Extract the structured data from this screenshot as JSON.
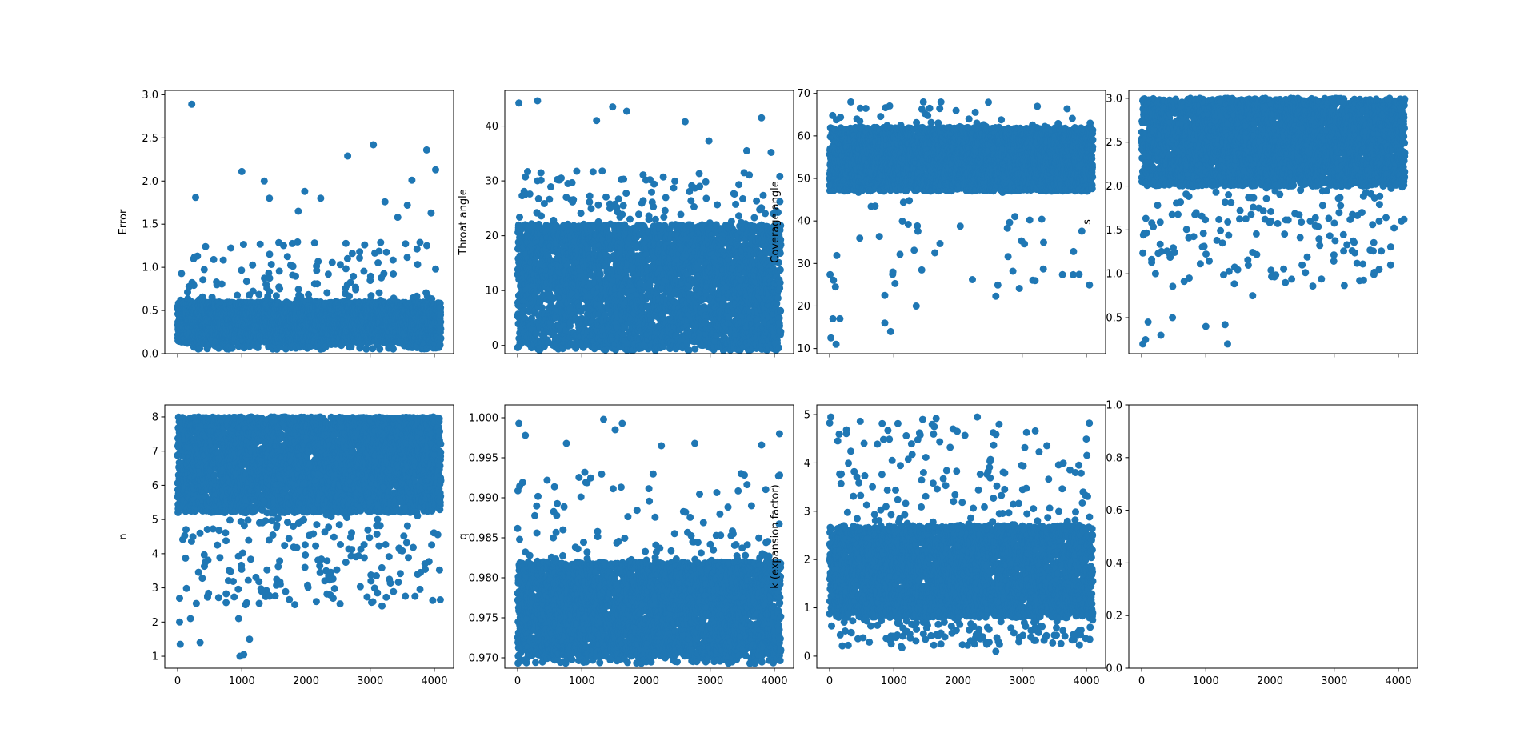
{
  "figure": {
    "marker_color": "#1f77b4",
    "axes_color": "#000000",
    "background": "#ffffff"
  },
  "chart_data": [
    {
      "type": "scatter",
      "ylabel": "Error",
      "xlim": [
        -200,
        4300
      ],
      "ylim": [
        0,
        3.05
      ],
      "xticks": [
        0,
        1000,
        2000,
        3000,
        4000
      ],
      "xtick_labels": [
        "",
        "",
        "",
        "",
        ""
      ],
      "yticks": [
        0,
        0.5,
        1,
        1.5,
        2,
        2.5,
        3
      ],
      "ytick_labels": [
        "0.0",
        "0.5",
        "1.0",
        "1.5",
        "2.0",
        "2.5",
        "3.0"
      ],
      "distribution": {
        "n": 4100,
        "x_range": [
          0,
          4100
        ],
        "dense_band": [
          0.13,
          0.6
        ],
        "spread_max": 1.3,
        "outlier_frac": 0.06
      },
      "outliers": [
        [
          220,
          2.89
        ],
        [
          3050,
          2.42
        ],
        [
          3880,
          2.36
        ],
        [
          2650,
          2.29
        ],
        [
          4020,
          2.13
        ],
        [
          1000,
          2.11
        ],
        [
          1350,
          2.0
        ],
        [
          3650,
          2.01
        ],
        [
          1980,
          1.88
        ],
        [
          280,
          1.81
        ],
        [
          1430,
          1.8
        ],
        [
          2230,
          1.8
        ],
        [
          3230,
          1.76
        ],
        [
          3580,
          1.72
        ],
        [
          3950,
          1.63
        ],
        [
          3430,
          1.58
        ],
        [
          1880,
          1.65
        ]
      ]
    },
    {
      "type": "scatter",
      "ylabel": "Throat angle",
      "xlim": [
        -200,
        4300
      ],
      "ylim": [
        -1.5,
        46.5
      ],
      "xticks": [
        0,
        1000,
        2000,
        3000,
        4000
      ],
      "xtick_labels": [
        "",
        "",
        "",
        "",
        ""
      ],
      "yticks": [
        0,
        10,
        20,
        30,
        40
      ],
      "ytick_labels": [
        "0",
        "10",
        "20",
        "30",
        "40"
      ],
      "distribution": {
        "n": 4100,
        "x_range": [
          0,
          4100
        ],
        "dense_band": [
          0,
          22
        ],
        "spread_max": 32,
        "outlier_frac": 0.05
      },
      "outliers": [
        [
          310,
          44.6
        ],
        [
          20,
          44.2
        ],
        [
          1480,
          43.5
        ],
        [
          1700,
          42.7
        ],
        [
          1230,
          41.0
        ],
        [
          3800,
          41.5
        ],
        [
          2610,
          40.8
        ],
        [
          3570,
          35.5
        ],
        [
          2980,
          37.3
        ],
        [
          3950,
          35.2
        ]
      ]
    },
    {
      "type": "scatter",
      "ylabel": "Coverage angle",
      "xlim": [
        -200,
        4300
      ],
      "ylim": [
        8.8,
        70.7
      ],
      "xticks": [
        0,
        1000,
        2000,
        3000,
        4000
      ],
      "xtick_labels": [
        "",
        "",
        "",
        "",
        ""
      ],
      "yticks": [
        10,
        20,
        30,
        40,
        50,
        60,
        70
      ],
      "ytick_labels": [
        "10",
        "20",
        "30",
        "40",
        "50",
        "60",
        "70"
      ],
      "distribution": {
        "n": 4100,
        "x_range": [
          0,
          4100
        ],
        "dense_band": [
          47,
          62
        ],
        "spread_max": 68,
        "outlier_frac": 0.02
      },
      "outliers": [
        [
          100,
          11.0
        ],
        [
          20,
          12.5
        ],
        [
          50,
          17.0
        ],
        [
          160,
          17.0
        ],
        [
          950,
          14.0
        ],
        [
          860,
          16.0
        ],
        [
          1350,
          20.0
        ],
        [
          2590,
          22.3
        ],
        [
          860,
          22.5
        ],
        [
          3330,
          28.7
        ],
        [
          3800,
          32.8
        ],
        [
          2780,
          31.6
        ],
        [
          1640,
          32.5
        ],
        [
          90,
          24.5
        ],
        [
          1460,
          68.0
        ],
        [
          330,
          68.0
        ]
      ]
    },
    {
      "type": "scatter",
      "ylabel": "s",
      "xlim": [
        -200,
        4300
      ],
      "ylim": [
        0.09,
        3.09
      ],
      "xticks": [
        0,
        1000,
        2000,
        3000,
        4000
      ],
      "xtick_labels": [
        "",
        "",
        "",
        "",
        ""
      ],
      "yticks": [
        0.5,
        1,
        1.5,
        2,
        2.5,
        3
      ],
      "ytick_labels": [
        "0.5",
        "1.0",
        "1.5",
        "2.0",
        "2.5",
        "3.0"
      ],
      "distribution": {
        "n": 4100,
        "x_range": [
          0,
          4100
        ],
        "dense_band": [
          2.0,
          2.97
        ],
        "spread_max": 3.0,
        "outlier_frac": 0.08
      },
      "outliers": [
        [
          1340,
          0.2
        ],
        [
          1300,
          0.42
        ],
        [
          60,
          0.25
        ],
        [
          20,
          0.2
        ],
        [
          100,
          0.45
        ],
        [
          300,
          0.3
        ],
        [
          480,
          0.5
        ],
        [
          1000,
          0.4
        ],
        [
          3700,
          1.05
        ],
        [
          3880,
          1.1
        ],
        [
          4050,
          1.6
        ],
        [
          1730,
          0.75
        ],
        [
          2240,
          0.9
        ],
        [
          2500,
          1.1
        ]
      ]
    },
    {
      "type": "scatter",
      "ylabel": "n",
      "xlim": [
        -200,
        4300
      ],
      "ylim": [
        0.65,
        8.35
      ],
      "xticks": [
        0,
        1000,
        2000,
        3000,
        4000
      ],
      "xtick_labels": [
        "0",
        "1000",
        "2000",
        "3000",
        "4000"
      ],
      "yticks": [
        1,
        2,
        3,
        4,
        5,
        6,
        7,
        8
      ],
      "ytick_labels": [
        "1",
        "2",
        "3",
        "4",
        "5",
        "6",
        "7",
        "8"
      ],
      "distribution": {
        "n": 4100,
        "x_range": [
          0,
          4100
        ],
        "dense_band": [
          5.2,
          7.95
        ],
        "spread_max": 8.0,
        "outlier_frac": 0.08
      },
      "outliers": [
        [
          970,
          1.0
        ],
        [
          1030,
          1.05
        ],
        [
          1120,
          1.5
        ],
        [
          950,
          2.1
        ],
        [
          40,
          1.35
        ],
        [
          30,
          2.0
        ],
        [
          200,
          2.1
        ],
        [
          350,
          1.4
        ],
        [
          3300,
          3.25
        ],
        [
          3470,
          4.1
        ],
        [
          1310,
          2.9
        ],
        [
          1600,
          3.1
        ],
        [
          2220,
          3.45
        ]
      ]
    },
    {
      "type": "scatter",
      "ylabel": "q",
      "xlim": [
        -200,
        4300
      ],
      "ylim": [
        0.9687,
        1.0016
      ],
      "xticks": [
        0,
        1000,
        2000,
        3000,
        4000
      ],
      "xtick_labels": [
        "0",
        "1000",
        "2000",
        "3000",
        "4000"
      ],
      "yticks": [
        0.97,
        0.975,
        0.98,
        0.985,
        0.99,
        0.995,
        1.0
      ],
      "ytick_labels": [
        "0.970",
        "0.975",
        "0.980",
        "0.985",
        "0.990",
        "0.995",
        "1.000"
      ],
      "distribution": {
        "n": 4100,
        "x_range": [
          0,
          4100
        ],
        "dense_band": [
          0.9702,
          0.982
        ],
        "spread_max": 0.9935,
        "outlier_frac": 0.05
      },
      "outliers": [
        [
          1340,
          0.9998
        ],
        [
          20,
          0.9993
        ],
        [
          1630,
          0.9993
        ],
        [
          4080,
          0.998
        ],
        [
          3800,
          0.9966
        ],
        [
          2760,
          0.9968
        ],
        [
          2240,
          0.9965
        ],
        [
          1520,
          0.9985
        ],
        [
          760,
          0.9968
        ],
        [
          120,
          0.9978
        ]
      ]
    },
    {
      "type": "scatter",
      "ylabel": "k (expansion factor)",
      "xlim": [
        -200,
        4300
      ],
      "ylim": [
        -0.25,
        5.2
      ],
      "xticks": [
        0,
        1000,
        2000,
        3000,
        4000
      ],
      "xtick_labels": [
        "0",
        "1000",
        "2000",
        "3000",
        "4000"
      ],
      "yticks": [
        0,
        1,
        2,
        3,
        4,
        5
      ],
      "ytick_labels": [
        "0",
        "1",
        "2",
        "3",
        "4",
        "5"
      ],
      "distribution": {
        "n": 4100,
        "x_range": [
          0,
          4100
        ],
        "dense_band": [
          0.8,
          2.7
        ],
        "spread_max": 4.9,
        "outlier_frac": 0.07
      },
      "outliers": [
        [
          20,
          4.95
        ],
        [
          1660,
          4.92
        ],
        [
          2300,
          4.95
        ],
        [
          1450,
          4.9
        ],
        [
          2590,
          0.1
        ],
        [
          3830,
          3.8
        ],
        [
          3950,
          3.4
        ],
        [
          2990,
          3.95
        ]
      ]
    },
    {
      "type": "scatter",
      "ylabel": "",
      "xlim": [
        -200,
        4300
      ],
      "ylim": [
        0,
        1
      ],
      "xticks": [
        0,
        1000,
        2000,
        3000,
        4000
      ],
      "xtick_labels": [
        "0",
        "1000",
        "2000",
        "3000",
        "4000"
      ],
      "yticks": [
        0,
        0.2,
        0.4,
        0.6,
        0.8,
        1.0
      ],
      "ytick_labels": [
        "0.0",
        "0.2",
        "0.4",
        "0.6",
        "0.8",
        "1.0"
      ],
      "distribution": {
        "n": 0
      }
    }
  ]
}
